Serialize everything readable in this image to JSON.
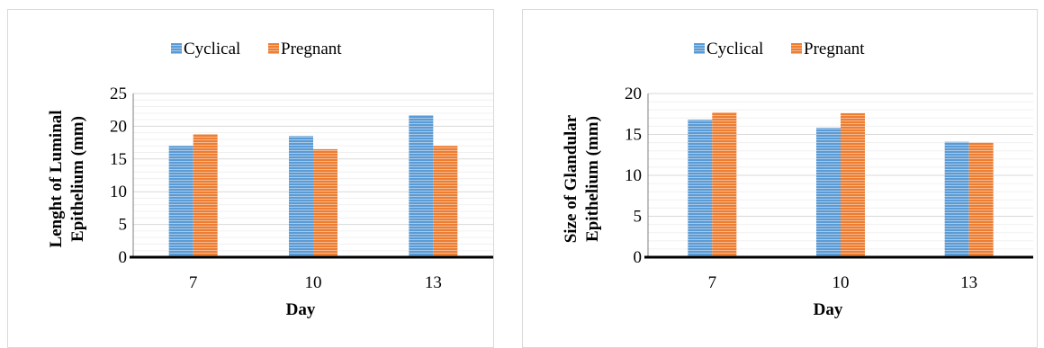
{
  "chart_data": [
    {
      "type": "bar",
      "categories": [
        "7",
        "10",
        "13"
      ],
      "series": [
        {
          "name": "Cyclical",
          "values": [
            17.0,
            18.5,
            21.7
          ]
        },
        {
          "name": "Pregnant",
          "values": [
            18.8,
            16.5,
            17.0
          ]
        }
      ],
      "title": "",
      "xlabel": "Day",
      "ylabel_lines": [
        "Lenght of Luminal",
        "Epithelium (mm)"
      ],
      "ylim": [
        0,
        25
      ],
      "yticks": [
        0,
        5,
        10,
        15,
        20,
        25
      ],
      "grid": true,
      "legend": "top-center"
    },
    {
      "type": "bar",
      "categories": [
        "7",
        "10",
        "13"
      ],
      "series": [
        {
          "name": "Cyclical",
          "values": [
            16.8,
            15.8,
            14.1
          ]
        },
        {
          "name": "Pregnant",
          "values": [
            17.7,
            17.6,
            14.0
          ]
        }
      ],
      "title": "",
      "xlabel": "Day",
      "ylabel_lines": [
        "Size of Glandular",
        "Epithelium  (mm)"
      ],
      "ylim": [
        0,
        20
      ],
      "yticks": [
        0,
        5,
        10,
        15,
        20
      ],
      "grid": true,
      "legend": "top-center"
    }
  ],
  "colors": {
    "Cyclical": "#5b9bd5",
    "Pregnant": "#ed7d31"
  }
}
